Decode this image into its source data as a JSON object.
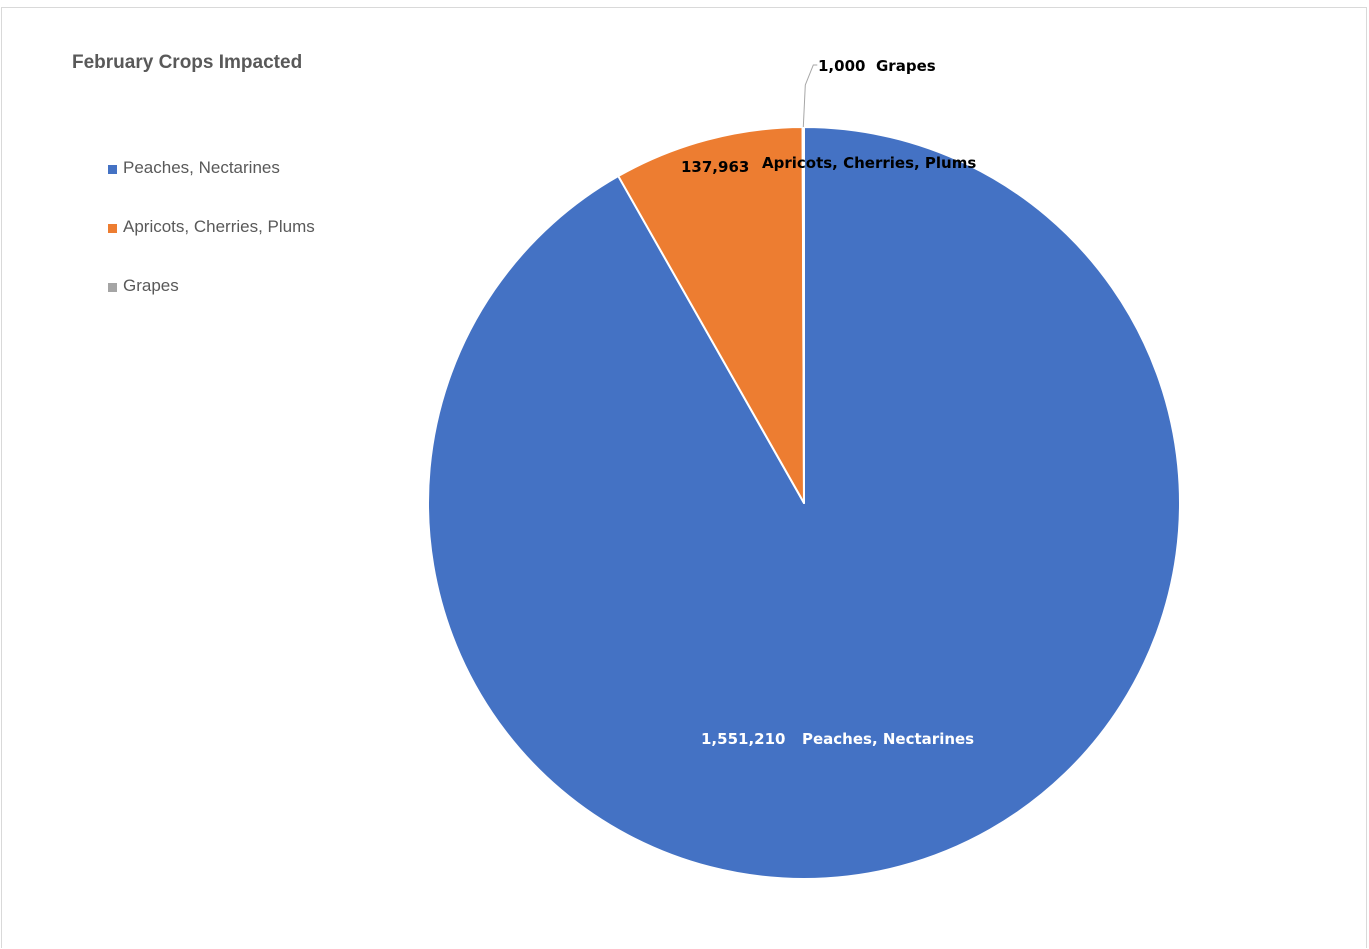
{
  "chart_data": {
    "type": "pie",
    "title": "February Crops Impacted",
    "categories": [
      "Peaches, Nectarines",
      "Apricots, Cherries, Plums",
      "Grapes"
    ],
    "values": [
      1551210,
      137963,
      1000
    ],
    "value_labels": [
      "1,551,210",
      "137,963",
      "1,000"
    ],
    "colors": [
      "#4472c4",
      "#ed7d31",
      "#a5a5a5"
    ],
    "legend_position": "left",
    "start_angle_deg": 0,
    "direction": "clockwise"
  }
}
